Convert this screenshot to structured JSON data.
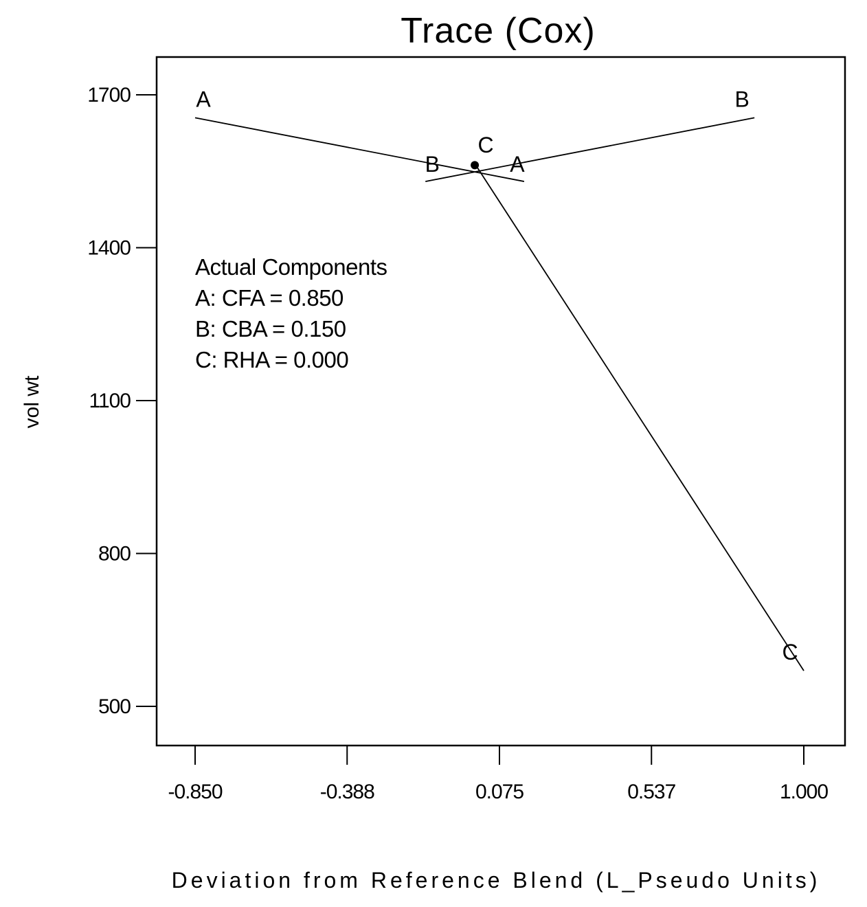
{
  "chart_data": {
    "type": "line",
    "title": "Trace (Cox)",
    "xlabel": "Deviation from Reference Blend (L_Pseudo Units)",
    "ylabel": "vol wt",
    "xlim": [
      -0.85,
      1.0
    ],
    "ylim": [
      500,
      1700
    ],
    "x_ticks": [
      "-0.850",
      "-0.388",
      "0.075",
      "0.537",
      "1.000"
    ],
    "y_ticks": [
      "1700",
      "1400",
      "1100",
      "800",
      "500"
    ],
    "grid": false,
    "series": [
      {
        "name": "A",
        "x": [
          -0.85,
          0.15
        ],
        "y": [
          1655,
          1530
        ],
        "start_label": "A",
        "end_label": "A"
      },
      {
        "name": "B",
        "x": [
          -0.15,
          0.85
        ],
        "y": [
          1530,
          1655
        ],
        "start_label": "B",
        "end_label": "B"
      },
      {
        "name": "C",
        "x": [
          0.0,
          1.0
        ],
        "y": [
          1565,
          570
        ],
        "start_label": "C",
        "end_label": "C"
      }
    ],
    "reference_point": {
      "x": 0.0,
      "y": 1562
    },
    "annotation": {
      "heading": "Actual Components",
      "lines": [
        "A: CFA = 0.850",
        "B: CBA = 0.150",
        "C: RHA = 0.000"
      ]
    }
  }
}
